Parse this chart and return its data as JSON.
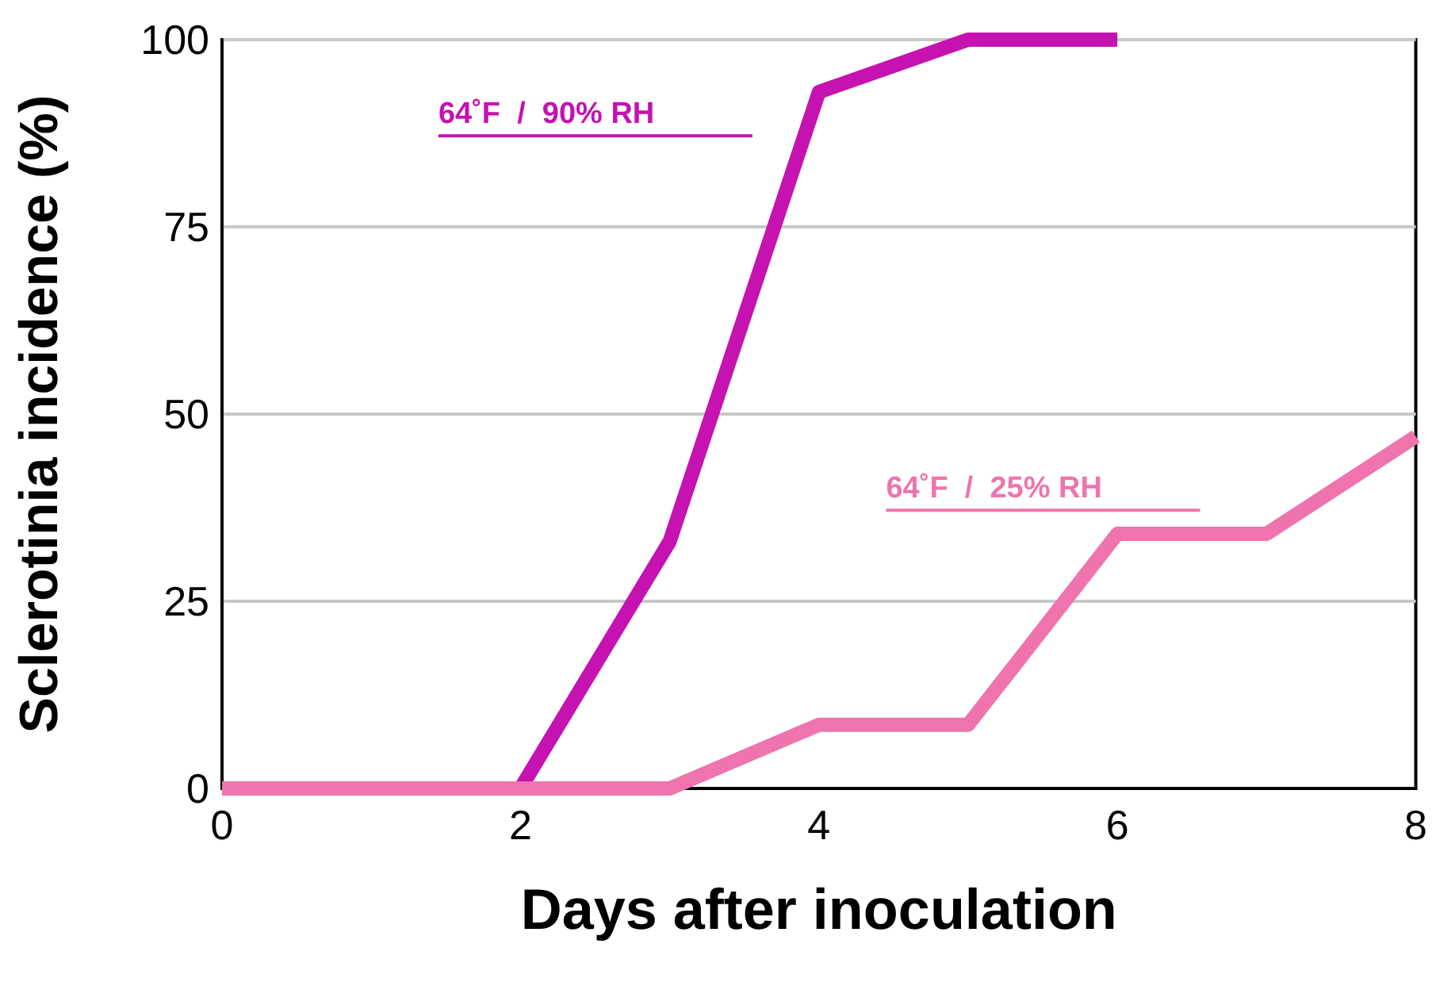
{
  "chart_data": {
    "type": "line",
    "xlabel": "Days after inoculation",
    "ylabel": "Sclerotinia incidence (%)",
    "xlim": [
      0,
      8
    ],
    "xticks": [
      0,
      2,
      4,
      6,
      8
    ],
    "ylim": [
      0,
      100
    ],
    "yticks": [
      0,
      25,
      50,
      75,
      100
    ],
    "grid": "y",
    "legend": false,
    "marker": "none",
    "line_style": "solid",
    "series": [
      {
        "name": "64˚F  /  90% RH",
        "color": "#c512b0",
        "x": [
          0,
          1,
          2,
          3,
          4,
          5,
          6
        ],
        "values": [
          0,
          0,
          0,
          33,
          93,
          100,
          100
        ]
      },
      {
        "name": "64˚F  /  25% RH",
        "color": "#ef74ad",
        "x": [
          0,
          1,
          2,
          3,
          4,
          5,
          6,
          7,
          8
        ],
        "values": [
          0,
          0,
          0,
          0,
          8.5,
          8.5,
          34,
          34,
          47
        ]
      }
    ]
  }
}
